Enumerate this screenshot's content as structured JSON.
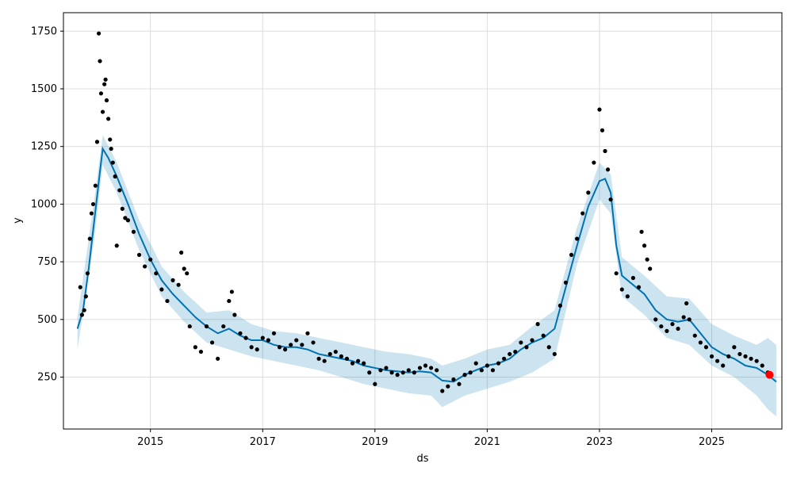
{
  "chart_data": {
    "type": "scatter",
    "xlabel": "ds",
    "ylabel": "y",
    "xlim": [
      2013.45,
      2026.25
    ],
    "ylim": [
      25,
      1830
    ],
    "x_ticks": [
      2015,
      2017,
      2019,
      2021,
      2023,
      2025
    ],
    "x_tick_labels": [
      "2015",
      "2017",
      "2019",
      "2021",
      "2023",
      "2025"
    ],
    "y_ticks": [
      250,
      500,
      750,
      1000,
      1250,
      1500,
      1750
    ],
    "y_tick_labels": [
      "250",
      "500",
      "750",
      "1000",
      "1250",
      "1500",
      "1750"
    ],
    "grid": true,
    "colors": {
      "observed": "#000000",
      "forecast_line": "#0072B2",
      "interval_fill": "#0072B2",
      "highlight": "#ff0000"
    },
    "series": [
      {
        "kind": "observed",
        "points": [
          [
            2013.75,
            640
          ],
          [
            2013.78,
            520
          ],
          [
            2013.82,
            540
          ],
          [
            2013.85,
            600
          ],
          [
            2013.88,
            700
          ],
          [
            2013.92,
            850
          ],
          [
            2013.95,
            960
          ],
          [
            2013.98,
            1000
          ],
          [
            2014.02,
            1080
          ],
          [
            2014.05,
            1270
          ],
          [
            2014.08,
            1740
          ],
          [
            2014.1,
            1620
          ],
          [
            2014.12,
            1480
          ],
          [
            2014.15,
            1400
          ],
          [
            2014.18,
            1520
          ],
          [
            2014.2,
            1540
          ],
          [
            2014.22,
            1450
          ],
          [
            2014.25,
            1370
          ],
          [
            2014.28,
            1280
          ],
          [
            2014.3,
            1240
          ],
          [
            2014.33,
            1180
          ],
          [
            2014.37,
            1120
          ],
          [
            2014.4,
            820
          ],
          [
            2014.45,
            1060
          ],
          [
            2014.5,
            980
          ],
          [
            2014.55,
            940
          ],
          [
            2014.6,
            930
          ],
          [
            2014.7,
            880
          ],
          [
            2014.8,
            780
          ],
          [
            2014.9,
            730
          ],
          [
            2015.0,
            760
          ],
          [
            2015.1,
            700
          ],
          [
            2015.2,
            630
          ],
          [
            2015.3,
            580
          ],
          [
            2015.4,
            670
          ],
          [
            2015.5,
            650
          ],
          [
            2015.55,
            790
          ],
          [
            2015.6,
            720
          ],
          [
            2015.65,
            700
          ],
          [
            2015.7,
            470
          ],
          [
            2015.8,
            380
          ],
          [
            2015.9,
            360
          ],
          [
            2016.0,
            470
          ],
          [
            2016.1,
            400
          ],
          [
            2016.2,
            330
          ],
          [
            2016.3,
            470
          ],
          [
            2016.4,
            580
          ],
          [
            2016.45,
            620
          ],
          [
            2016.5,
            520
          ],
          [
            2016.6,
            440
          ],
          [
            2016.7,
            420
          ],
          [
            2016.8,
            380
          ],
          [
            2016.9,
            370
          ],
          [
            2017.0,
            420
          ],
          [
            2017.1,
            410
          ],
          [
            2017.2,
            440
          ],
          [
            2017.3,
            380
          ],
          [
            2017.4,
            370
          ],
          [
            2017.5,
            390
          ],
          [
            2017.6,
            410
          ],
          [
            2017.7,
            390
          ],
          [
            2017.8,
            440
          ],
          [
            2017.9,
            400
          ],
          [
            2018.0,
            330
          ],
          [
            2018.1,
            320
          ],
          [
            2018.2,
            350
          ],
          [
            2018.3,
            360
          ],
          [
            2018.4,
            340
          ],
          [
            2018.5,
            330
          ],
          [
            2018.6,
            310
          ],
          [
            2018.7,
            320
          ],
          [
            2018.8,
            310
          ],
          [
            2018.9,
            270
          ],
          [
            2019.0,
            220
          ],
          [
            2019.1,
            280
          ],
          [
            2019.2,
            290
          ],
          [
            2019.3,
            270
          ],
          [
            2019.4,
            260
          ],
          [
            2019.5,
            270
          ],
          [
            2019.6,
            280
          ],
          [
            2019.7,
            270
          ],
          [
            2019.8,
            290
          ],
          [
            2019.9,
            300
          ],
          [
            2020.0,
            290
          ],
          [
            2020.1,
            280
          ],
          [
            2020.2,
            190
          ],
          [
            2020.3,
            210
          ],
          [
            2020.4,
            240
          ],
          [
            2020.5,
            220
          ],
          [
            2020.6,
            260
          ],
          [
            2020.7,
            270
          ],
          [
            2020.8,
            310
          ],
          [
            2020.9,
            280
          ],
          [
            2021.0,
            300
          ],
          [
            2021.1,
            280
          ],
          [
            2021.2,
            310
          ],
          [
            2021.3,
            330
          ],
          [
            2021.4,
            350
          ],
          [
            2021.5,
            360
          ],
          [
            2021.6,
            400
          ],
          [
            2021.7,
            380
          ],
          [
            2021.8,
            410
          ],
          [
            2021.9,
            480
          ],
          [
            2022.0,
            430
          ],
          [
            2022.1,
            380
          ],
          [
            2022.2,
            350
          ],
          [
            2022.3,
            560
          ],
          [
            2022.4,
            660
          ],
          [
            2022.5,
            780
          ],
          [
            2022.6,
            850
          ],
          [
            2022.7,
            960
          ],
          [
            2022.8,
            1050
          ],
          [
            2022.9,
            1180
          ],
          [
            2023.0,
            1410
          ],
          [
            2023.05,
            1320
          ],
          [
            2023.1,
            1230
          ],
          [
            2023.15,
            1150
          ],
          [
            2023.2,
            1020
          ],
          [
            2023.3,
            700
          ],
          [
            2023.4,
            630
          ],
          [
            2023.5,
            600
          ],
          [
            2023.6,
            680
          ],
          [
            2023.7,
            640
          ],
          [
            2023.75,
            880
          ],
          [
            2023.8,
            820
          ],
          [
            2023.85,
            760
          ],
          [
            2023.9,
            720
          ],
          [
            2024.0,
            500
          ],
          [
            2024.1,
            470
          ],
          [
            2024.2,
            450
          ],
          [
            2024.3,
            480
          ],
          [
            2024.4,
            460
          ],
          [
            2024.5,
            510
          ],
          [
            2024.55,
            570
          ],
          [
            2024.6,
            500
          ],
          [
            2024.7,
            430
          ],
          [
            2024.8,
            400
          ],
          [
            2024.9,
            380
          ],
          [
            2025.0,
            340
          ],
          [
            2025.1,
            320
          ],
          [
            2025.2,
            300
          ],
          [
            2025.3,
            340
          ],
          [
            2025.4,
            380
          ],
          [
            2025.5,
            350
          ],
          [
            2025.6,
            340
          ],
          [
            2025.7,
            330
          ],
          [
            2025.8,
            320
          ],
          [
            2025.9,
            300
          ],
          [
            2026.0,
            270
          ]
        ]
      },
      {
        "kind": "forecast",
        "points": [
          [
            2013.7,
            460
          ],
          [
            2013.8,
            540
          ],
          [
            2013.9,
            720
          ],
          [
            2014.0,
            930
          ],
          [
            2014.1,
            1140
          ],
          [
            2014.15,
            1240
          ],
          [
            2014.25,
            1200
          ],
          [
            2014.4,
            1120
          ],
          [
            2014.6,
            1000
          ],
          [
            2014.8,
            870
          ],
          [
            2015.0,
            760
          ],
          [
            2015.2,
            670
          ],
          [
            2015.4,
            610
          ],
          [
            2015.6,
            560
          ],
          [
            2015.8,
            510
          ],
          [
            2016.0,
            470
          ],
          [
            2016.2,
            440
          ],
          [
            2016.4,
            460
          ],
          [
            2016.6,
            430
          ],
          [
            2016.8,
            410
          ],
          [
            2017.0,
            410
          ],
          [
            2017.2,
            390
          ],
          [
            2017.4,
            380
          ],
          [
            2017.6,
            380
          ],
          [
            2017.8,
            370
          ],
          [
            2018.0,
            350
          ],
          [
            2018.2,
            340
          ],
          [
            2018.4,
            330
          ],
          [
            2018.6,
            320
          ],
          [
            2018.8,
            300
          ],
          [
            2019.0,
            290
          ],
          [
            2019.2,
            280
          ],
          [
            2019.4,
            275
          ],
          [
            2019.6,
            270
          ],
          [
            2019.8,
            275
          ],
          [
            2020.0,
            270
          ],
          [
            2020.2,
            235
          ],
          [
            2020.4,
            230
          ],
          [
            2020.6,
            260
          ],
          [
            2020.8,
            280
          ],
          [
            2021.0,
            300
          ],
          [
            2021.2,
            310
          ],
          [
            2021.4,
            330
          ],
          [
            2021.6,
            370
          ],
          [
            2021.8,
            400
          ],
          [
            2022.0,
            420
          ],
          [
            2022.2,
            460
          ],
          [
            2022.4,
            640
          ],
          [
            2022.6,
            820
          ],
          [
            2022.8,
            990
          ],
          [
            2023.0,
            1100
          ],
          [
            2023.1,
            1110
          ],
          [
            2023.2,
            1050
          ],
          [
            2023.3,
            820
          ],
          [
            2023.4,
            690
          ],
          [
            2023.6,
            650
          ],
          [
            2023.8,
            610
          ],
          [
            2024.0,
            540
          ],
          [
            2024.2,
            500
          ],
          [
            2024.4,
            490
          ],
          [
            2024.6,
            500
          ],
          [
            2024.8,
            440
          ],
          [
            2025.0,
            380
          ],
          [
            2025.2,
            350
          ],
          [
            2025.4,
            330
          ],
          [
            2025.6,
            300
          ],
          [
            2025.8,
            290
          ],
          [
            2026.0,
            260
          ],
          [
            2026.1,
            240
          ],
          [
            2026.15,
            230
          ]
        ]
      },
      {
        "kind": "interval",
        "upper": [
          [
            2013.7,
            510
          ],
          [
            2014.0,
            1020
          ],
          [
            2014.15,
            1300
          ],
          [
            2014.4,
            1180
          ],
          [
            2014.8,
            930
          ],
          [
            2015.2,
            730
          ],
          [
            2015.6,
            620
          ],
          [
            2016.0,
            530
          ],
          [
            2016.4,
            540
          ],
          [
            2016.8,
            480
          ],
          [
            2017.2,
            450
          ],
          [
            2017.6,
            440
          ],
          [
            2018.0,
            420
          ],
          [
            2018.4,
            400
          ],
          [
            2018.8,
            380
          ],
          [
            2019.2,
            360
          ],
          [
            2019.6,
            350
          ],
          [
            2020.0,
            330
          ],
          [
            2020.2,
            300
          ],
          [
            2020.6,
            330
          ],
          [
            2021.0,
            370
          ],
          [
            2021.4,
            390
          ],
          [
            2021.8,
            470
          ],
          [
            2022.2,
            540
          ],
          [
            2022.6,
            900
          ],
          [
            2023.0,
            1180
          ],
          [
            2023.2,
            1130
          ],
          [
            2023.4,
            770
          ],
          [
            2023.8,
            690
          ],
          [
            2024.2,
            600
          ],
          [
            2024.6,
            590
          ],
          [
            2025.0,
            480
          ],
          [
            2025.4,
            430
          ],
          [
            2025.8,
            390
          ],
          [
            2026.0,
            420
          ],
          [
            2026.15,
            390
          ]
        ],
        "lower": [
          [
            2013.7,
            370
          ],
          [
            2014.0,
            850
          ],
          [
            2014.15,
            1170
          ],
          [
            2014.4,
            1050
          ],
          [
            2014.8,
            800
          ],
          [
            2015.2,
            600
          ],
          [
            2015.6,
            490
          ],
          [
            2016.0,
            400
          ],
          [
            2016.4,
            370
          ],
          [
            2016.8,
            340
          ],
          [
            2017.2,
            320
          ],
          [
            2017.6,
            300
          ],
          [
            2018.0,
            280
          ],
          [
            2018.4,
            250
          ],
          [
            2018.8,
            220
          ],
          [
            2019.2,
            200
          ],
          [
            2019.6,
            180
          ],
          [
            2020.0,
            170
          ],
          [
            2020.2,
            120
          ],
          [
            2020.6,
            170
          ],
          [
            2021.0,
            200
          ],
          [
            2021.4,
            230
          ],
          [
            2021.8,
            270
          ],
          [
            2022.2,
            330
          ],
          [
            2022.6,
            740
          ],
          [
            2023.0,
            1020
          ],
          [
            2023.2,
            960
          ],
          [
            2023.4,
            600
          ],
          [
            2023.8,
            520
          ],
          [
            2024.2,
            420
          ],
          [
            2024.6,
            390
          ],
          [
            2025.0,
            300
          ],
          [
            2025.4,
            250
          ],
          [
            2025.8,
            170
          ],
          [
            2026.0,
            110
          ],
          [
            2026.15,
            80
          ]
        ]
      },
      {
        "kind": "highlight",
        "points": [
          [
            2026.03,
            260
          ]
        ]
      }
    ]
  }
}
